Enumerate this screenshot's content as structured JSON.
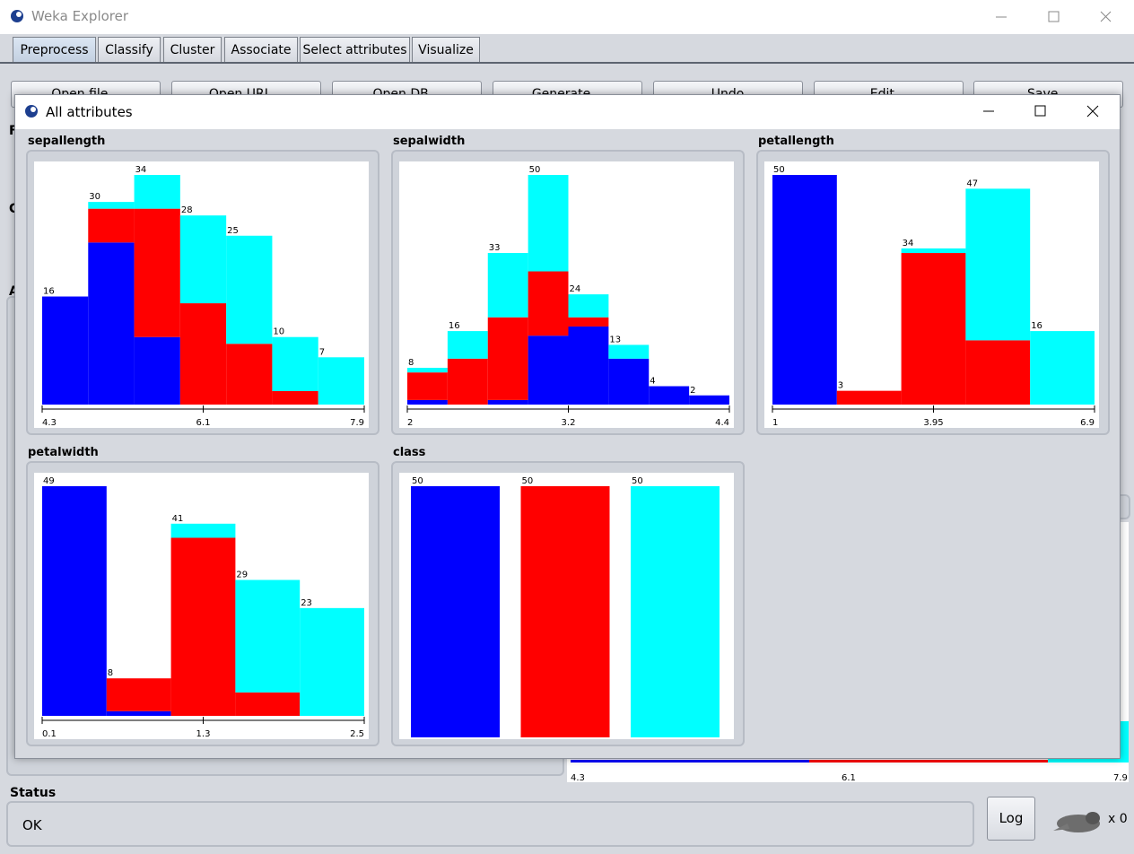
{
  "window": {
    "title": "Weka Explorer"
  },
  "tabs": [
    "Preprocess",
    "Classify",
    "Cluster",
    "Associate",
    "Select attributes",
    "Visualize"
  ],
  "buttons": [
    "Open file...",
    "Open URL...",
    "Open DB...",
    "Generate...",
    "Undo",
    "Edit...",
    "Save..."
  ],
  "section_labels": [
    "F",
    "C",
    "A"
  ],
  "background_ticks": [
    4.3,
    6.1,
    7.9
  ],
  "dialog": {
    "title": "All attributes",
    "charts": [
      {
        "type": "histogram",
        "title": "sepallength",
        "xlim": [
          4.3,
          7.9
        ],
        "xticks": [
          4.3,
          6.1,
          7.9
        ],
        "totals": [
          16,
          30,
          34,
          28,
          25,
          10,
          7
        ],
        "series": [
          {
            "color": "#0000ff",
            "values": [
              16,
              24,
              10,
              0,
              0,
              0,
              0
            ]
          },
          {
            "color": "#ff0000",
            "values": [
              0,
              5,
              19,
              15,
              9,
              2,
              0
            ]
          },
          {
            "color": "#00ffff",
            "values": [
              0,
              1,
              5,
              13,
              16,
              8,
              7
            ]
          }
        ]
      },
      {
        "type": "histogram",
        "title": "sepalwidth",
        "xlim": [
          2,
          4.4
        ],
        "xticks": [
          2,
          3.2,
          4.4
        ],
        "totals": [
          8,
          16,
          33,
          50,
          24,
          13,
          4,
          2
        ],
        "series": [
          {
            "color": "#0000ff",
            "values": [
              1,
              0,
              1,
              15,
              17,
              10,
              4,
              2
            ]
          },
          {
            "color": "#ff0000",
            "values": [
              6,
              10,
              18,
              14,
              2,
              0,
              0,
              0
            ]
          },
          {
            "color": "#00ffff",
            "values": [
              1,
              6,
              14,
              21,
              5,
              3,
              0,
              0
            ]
          }
        ]
      },
      {
        "type": "histogram",
        "title": "petallength",
        "xlim": [
          1,
          6.9
        ],
        "xticks": [
          1,
          3.95,
          6.9
        ],
        "totals": [
          50,
          3,
          34,
          47,
          16
        ],
        "series": [
          {
            "color": "#0000ff",
            "values": [
              50,
              0,
              0,
              0,
              0
            ]
          },
          {
            "color": "#ff0000",
            "values": [
              0,
              3,
              33,
              14,
              0
            ]
          },
          {
            "color": "#00ffff",
            "values": [
              0,
              0,
              1,
              33,
              16
            ]
          }
        ]
      },
      {
        "type": "histogram",
        "title": "petalwidth",
        "xlim": [
          0.1,
          2.5
        ],
        "xticks": [
          0.1,
          1.3,
          2.5
        ],
        "totals": [
          49,
          8,
          41,
          29,
          23
        ],
        "series": [
          {
            "color": "#0000ff",
            "values": [
              49,
              1,
              0,
              0,
              0
            ]
          },
          {
            "color": "#ff0000",
            "values": [
              0,
              7,
              38,
              5,
              0
            ]
          },
          {
            "color": "#00ffff",
            "values": [
              0,
              0,
              3,
              24,
              23
            ]
          }
        ]
      },
      {
        "type": "bar",
        "title": "class",
        "values": [
          50,
          50,
          50
        ],
        "colors": [
          "#0000ff",
          "#ff0000",
          "#00ffff"
        ]
      }
    ]
  },
  "status": {
    "label": "Status",
    "message": "OK",
    "log_button": "Log",
    "count": "x 0"
  }
}
